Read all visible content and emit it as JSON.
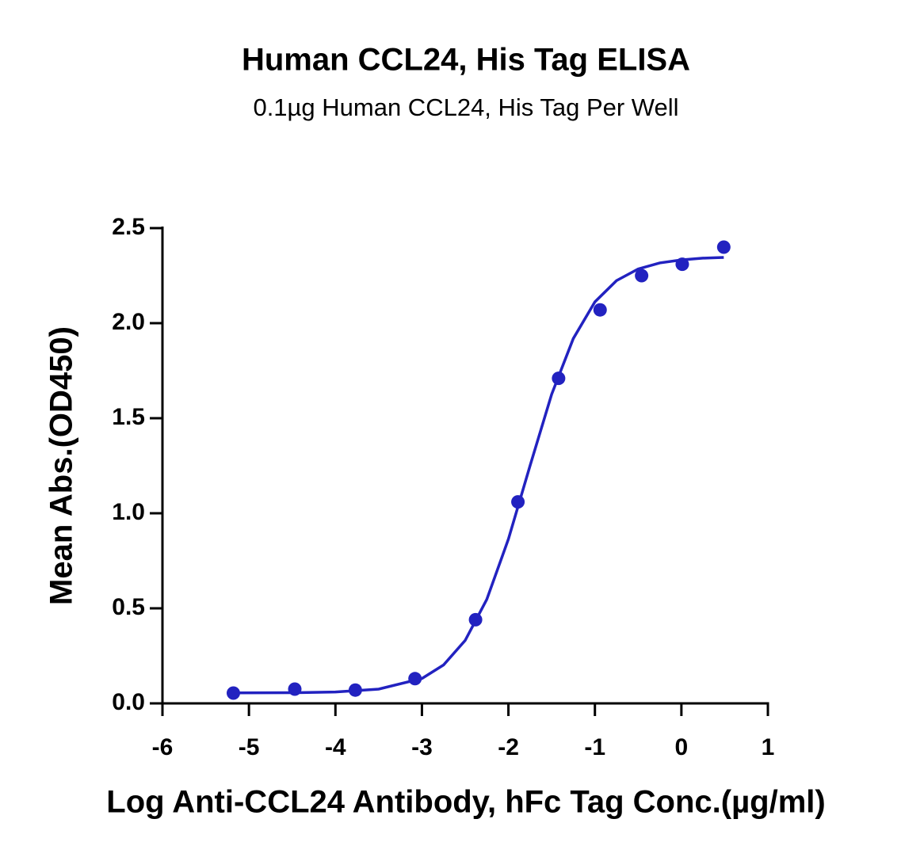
{
  "chart_data": {
    "type": "scatter",
    "title": "Human CCL24, His Tag ELISA",
    "subtitle": "0.1µg Human CCL24, His Tag Per Well",
    "x_label": "Log Anti-CCL24 Antibody, hFc Tag Conc.(µg/ml)",
    "y_label": "Mean Abs.(OD450)",
    "color": "#2222c0",
    "x": [
      -5.18,
      -4.47,
      -3.77,
      -3.08,
      -2.38,
      -1.89,
      -1.42,
      -0.94,
      -0.46,
      0.01,
      0.49
    ],
    "values": [
      0.054,
      0.075,
      0.07,
      0.13,
      0.44,
      1.06,
      1.71,
      2.07,
      2.25,
      2.31,
      2.4
    ],
    "fit": {
      "x": [
        -5.18,
        -4.5,
        -4,
        -3.5,
        -3,
        -2.75,
        -2.5,
        -2.25,
        -2,
        -1.75,
        -1.5,
        -1.25,
        -1,
        -0.75,
        -0.5,
        -0.25,
        0,
        0.25,
        0.49
      ],
      "values": [
        0.055,
        0.056,
        0.06,
        0.075,
        0.131,
        0.202,
        0.331,
        0.547,
        0.864,
        1.25,
        1.626,
        1.919,
        2.112,
        2.224,
        2.285,
        2.317,
        2.333,
        2.342,
        2.346
      ]
    },
    "xlim": [
      -6,
      1
    ],
    "xticks": [
      -6,
      -5,
      -4,
      -3,
      -2,
      -1,
      0,
      1
    ],
    "ylim": [
      0,
      2.5
    ],
    "yticks": [
      {
        "value": 0,
        "label": "0.0"
      },
      0.5,
      {
        "value": 1,
        "label": "1.0"
      },
      1.5,
      {
        "value": 2,
        "label": "2.0"
      },
      2.5
    ]
  }
}
